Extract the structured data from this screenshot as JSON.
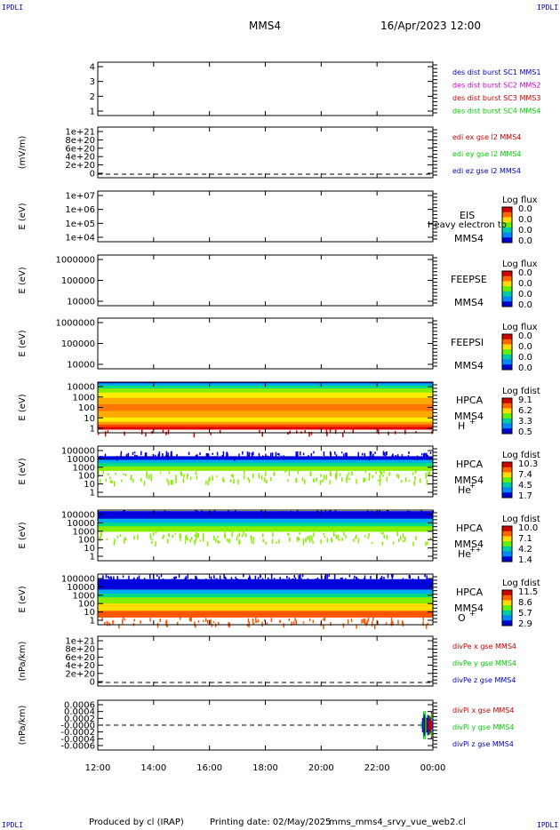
{
  "corners": {
    "tl": "IPDLI",
    "tr": "IPDLI",
    "bl": "IPDLI",
    "br": "IPDLI"
  },
  "header": {
    "spacecraft": "MMS4",
    "date": "16/Apr/2023 12:00"
  },
  "footer": {
    "produced": "Produced by cl (IRAP)",
    "printing": "Printing date: 02/May/2025",
    "file": "mms_mms4_srvy_vue_web2.cl"
  },
  "colors": {
    "red": "#cc0000",
    "green": "#00cc00",
    "blue": "#0000cc",
    "magenta": "#cc00cc"
  },
  "chart_data": [
    {
      "type": "line",
      "id": "burst",
      "yticks": [
        "4",
        "3",
        "2",
        "1"
      ],
      "ylabel": "",
      "legend": [
        {
          "text": "des dist burst SC1 MMS1",
          "color": "#0000cc"
        },
        {
          "text": "des dist burst SC2 MMS2",
          "color": "#cc00cc"
        },
        {
          "text": "des dist burst SC3 MMS3",
          "color": "#cc0000"
        },
        {
          "text": "des dist burst SC4 MMS4",
          "color": "#00cc00"
        }
      ]
    },
    {
      "type": "line",
      "id": "edi",
      "yticks": [
        "1e+21",
        "8e+20",
        "6e+20",
        "4e+20",
        "2e+20",
        "0"
      ],
      "ylabel": "(mV/m)",
      "zero_line": true,
      "legend": [
        {
          "text": "edi ex gse l2 MMS4",
          "color": "#cc0000"
        },
        {
          "text": "edi ey gse l2 MMS4",
          "color": "#00cc00"
        },
        {
          "text": "edi ez gse l2 MMS4",
          "color": "#0000cc"
        }
      ]
    },
    {
      "type": "heatmap",
      "id": "eis",
      "yticks": [
        "1e+07",
        "1e+06",
        "1e+05",
        "1e+04"
      ],
      "ylabel": "E (eV)",
      "labels": [
        "EIS",
        "MMS4"
      ],
      "overlay": "Heavy electron to",
      "cbar_title": "Log flux",
      "cbar_ticks": [
        "0.0",
        "0.0",
        "0.0",
        "0.0"
      ]
    },
    {
      "type": "heatmap",
      "id": "feepse",
      "yticks": [
        "1000000",
        "100000",
        "10000"
      ],
      "ylabel": "E (eV)",
      "labels": [
        "FEEPSE",
        "MMS4"
      ],
      "cbar_title": "Log flux",
      "cbar_ticks": [
        "0.0",
        "0.0",
        "0.0",
        "0.0"
      ]
    },
    {
      "type": "heatmap",
      "id": "feepsi",
      "yticks": [
        "1000000",
        "100000",
        "10000"
      ],
      "ylabel": "E (eV)",
      "labels": [
        "FEEPSI",
        "MMS4"
      ],
      "cbar_title": "Log flux",
      "cbar_ticks": [
        "0.0",
        "0.0",
        "0.0",
        "0.0"
      ]
    },
    {
      "type": "heatmap",
      "id": "hpca_h",
      "yticks": [
        "10000",
        "1000",
        "100",
        "10",
        "1"
      ],
      "ylabel": "E (eV)",
      "labels": [
        "HPCA",
        "MMS4"
      ],
      "species": "H",
      "charge": "+",
      "cbar_title": "Log fdist",
      "cbar_ticks": [
        "9.1",
        "6.2",
        "3.3",
        "0.5"
      ],
      "bands": [
        {
          "f": 0.06,
          "c": "#0000dd"
        },
        {
          "f": 0.12,
          "c": "#00aaee"
        },
        {
          "f": 0.16,
          "c": "#00dd88"
        },
        {
          "f": 0.22,
          "c": "#88ee00"
        },
        {
          "f": 0.29,
          "c": "#ffee00"
        },
        {
          "f": 0.34,
          "c": "#ffaa00"
        },
        {
          "f": 0.36,
          "c": "#ff7700"
        },
        {
          "f": 0.35,
          "c": "#ffaa00"
        },
        {
          "f": 0.23,
          "c": "#ffee00"
        },
        {
          "f": 0.15,
          "c": "#ff9900"
        },
        {
          "f": 0.13,
          "c": "#ff4400"
        },
        {
          "f": 0.12,
          "c": "#dd0000"
        }
      ],
      "fill_from": 0.0,
      "fill_to": 0.93
    },
    {
      "type": "heatmap",
      "id": "hpca_he",
      "yticks": [
        "100000",
        "10000",
        "1000",
        "100",
        "10",
        "1"
      ],
      "ylabel": "E (eV)",
      "labels": [
        "HPCA",
        "MMS4"
      ],
      "species": "He",
      "charge": "+",
      "cbar_title": "Log fdist",
      "cbar_ticks": [
        "10.3",
        "7.4",
        "4.5",
        "1.7"
      ],
      "bands": [
        {
          "f": 0.07,
          "c": "#0000dd"
        },
        {
          "f": 0.06,
          "c": "#00aaee"
        },
        {
          "f": 0.07,
          "c": "#00dd88"
        },
        {
          "f": 0.08,
          "c": "#88ee00"
        }
      ],
      "fill_from": 0.2,
      "fill_to": 0.48
    },
    {
      "type": "heatmap",
      "id": "hpca_hepp",
      "yticks": [
        "100000",
        "10000",
        "1000",
        "100",
        "10",
        "1"
      ],
      "ylabel": "E (eV)",
      "labels": [
        "HPCA",
        "MMS4"
      ],
      "species": "He",
      "charge": "++",
      "cbar_title": "Log fdist",
      "cbar_ticks": [
        "10.0",
        "7.1",
        "4.2",
        "1.4"
      ],
      "bands": [
        {
          "f": 0.15,
          "c": "#0000dd"
        },
        {
          "f": 0.08,
          "c": "#00aaee"
        },
        {
          "f": 0.07,
          "c": "#00dd88"
        },
        {
          "f": 0.1,
          "c": "#88ee00"
        }
      ],
      "fill_from": 0.02,
      "fill_to": 0.42
    },
    {
      "type": "heatmap",
      "id": "hpca_o",
      "yticks": [
        "100000",
        "10000",
        "1000",
        "100",
        "10",
        "1"
      ],
      "ylabel": "E (eV)",
      "labels": [
        "HPCA",
        "MMS4"
      ],
      "species": "O",
      "charge": "+",
      "cbar_title": "Log fdist",
      "cbar_ticks": [
        "11.5",
        "8.6",
        "5.7",
        "2.9"
      ],
      "bands": [
        {
          "f": 0.2,
          "c": "#0000dd"
        },
        {
          "f": 0.08,
          "c": "#00aaee"
        },
        {
          "f": 0.07,
          "c": "#00dd88"
        },
        {
          "f": 0.12,
          "c": "#88ee00"
        },
        {
          "f": 0.14,
          "c": "#ffdd00"
        },
        {
          "f": 0.12,
          "c": "#ff5500"
        }
      ],
      "fill_from": 0.1,
      "fill_to": 0.85
    },
    {
      "type": "line",
      "id": "divpe",
      "yticks": [
        "1e+21",
        "8e+20",
        "6e+20",
        "4e+20",
        "2e+20",
        "0"
      ],
      "ylabel": "(nPa/km)",
      "zero_line": true,
      "legend": [
        {
          "text": "divPe x gse MMS4",
          "color": "#cc0000"
        },
        {
          "text": "divPe y gse MMS4",
          "color": "#00cc00"
        },
        {
          "text": "divPe z gse MMS4",
          "color": "#0000cc"
        }
      ]
    },
    {
      "type": "line",
      "id": "divpi",
      "yticks": [
        "0.0006",
        "0.0004",
        "0.0002",
        "-0.0000",
        "-0.0002",
        "-0.0004",
        "-0.0006"
      ],
      "ylabel": "(nPa/km)",
      "zero_line": true,
      "legend": [
        {
          "text": "divPi x gse MMS4",
          "color": "#cc0000"
        },
        {
          "text": "divPi y gse MMS4",
          "color": "#00cc00"
        },
        {
          "text": "divPi z gse MMS4",
          "color": "#0000cc"
        }
      ]
    }
  ],
  "xaxis": {
    "ticks": [
      "12:00",
      "14:00",
      "16:00",
      "18:00",
      "20:00",
      "22:00",
      "00:00"
    ]
  }
}
